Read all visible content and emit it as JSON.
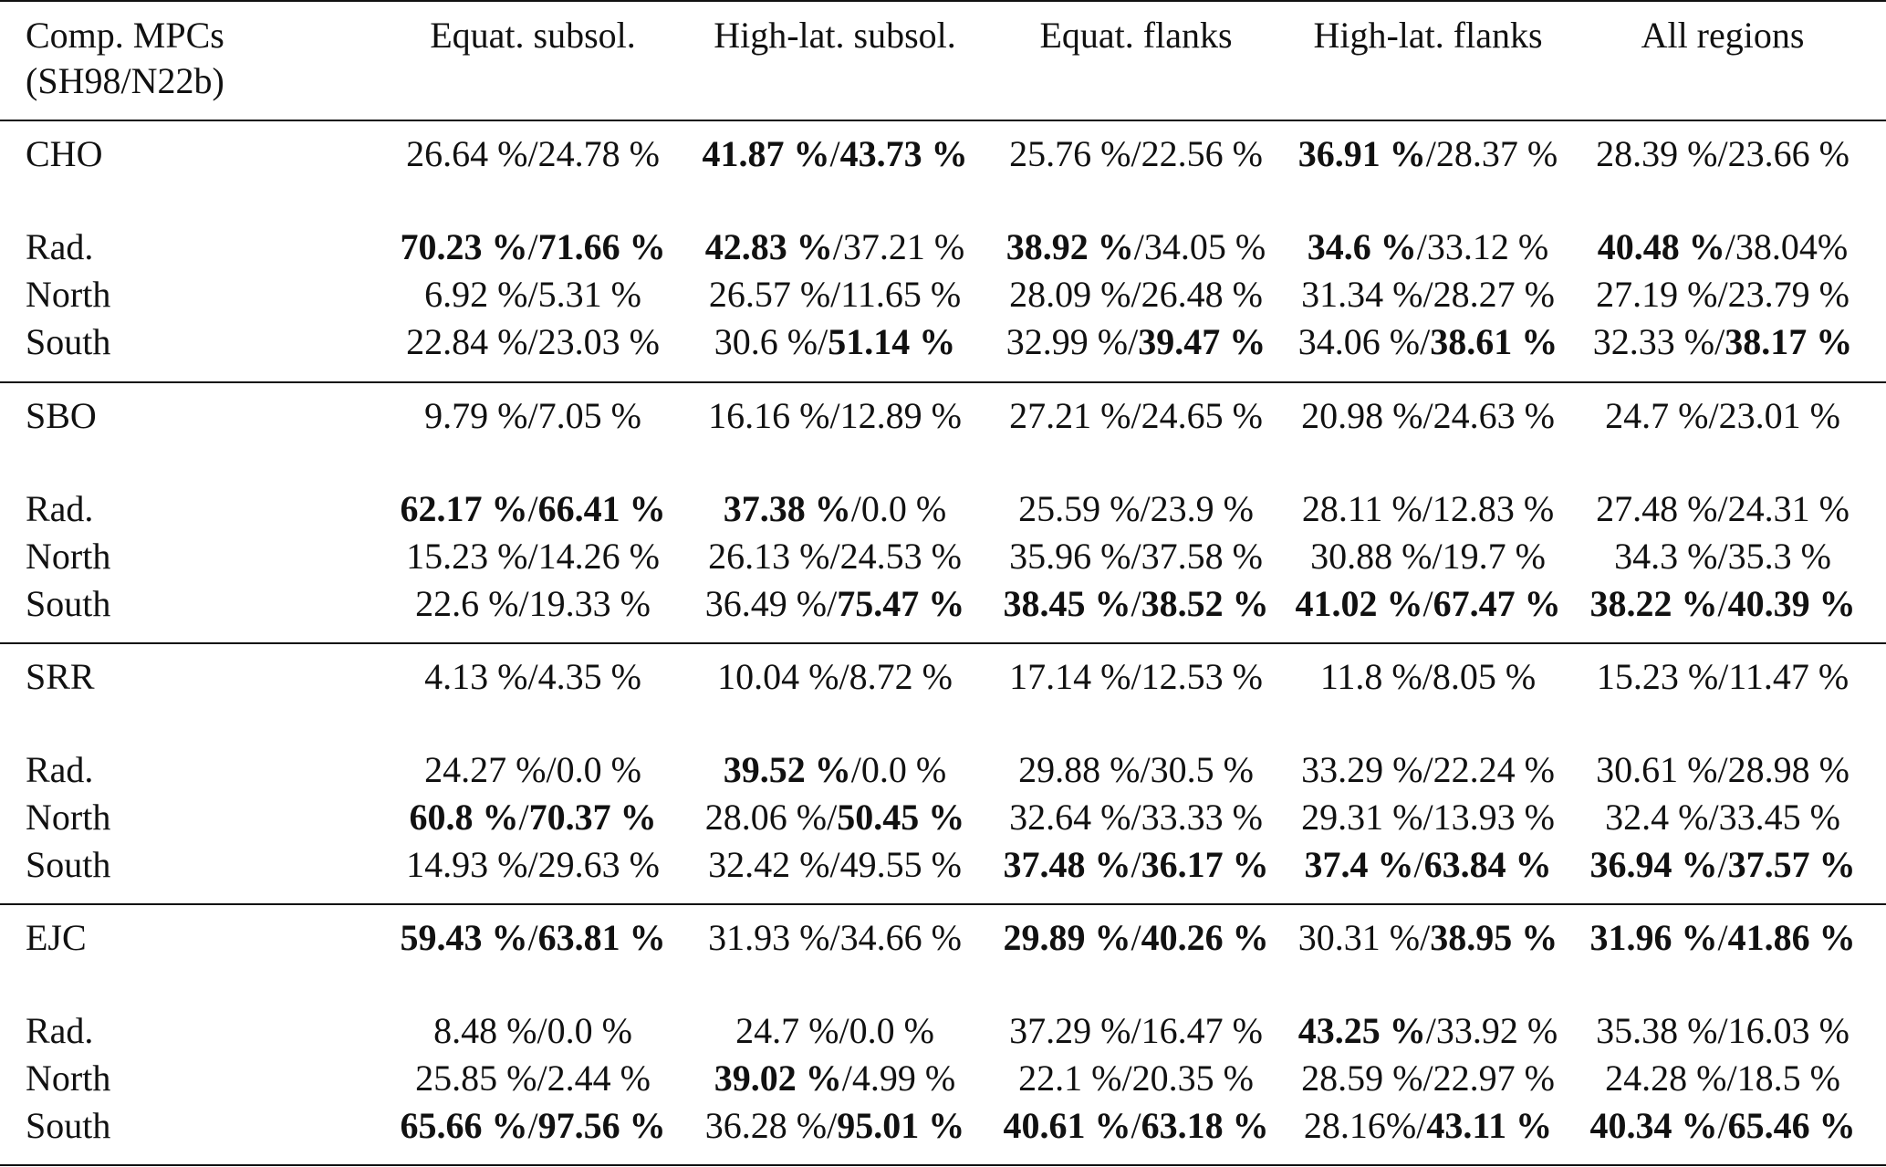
{
  "header": {
    "col0": [
      "Comp. MPCs",
      "(SH98/N22b)"
    ],
    "cols": [
      "Equat. subsol.",
      "High-lat. subsol.",
      "Equat. flanks",
      "High-lat. flanks",
      "All regions"
    ]
  },
  "groups": [
    {
      "name": "CHO",
      "rows": [
        {
          "label": "CHO",
          "cells": [
            [
              [
                "26.64 %",
                false
              ],
              [
                "24.78 %",
                false
              ]
            ],
            [
              [
                "41.87 %",
                true
              ],
              [
                "43.73 %",
                true
              ]
            ],
            [
              [
                "25.76 %",
                false
              ],
              [
                "22.56 %",
                false
              ]
            ],
            [
              [
                "36.91 %",
                true
              ],
              [
                "28.37 %",
                false
              ]
            ],
            [
              [
                "28.39 %",
                false
              ],
              [
                "23.66 %",
                false
              ]
            ]
          ]
        },
        {
          "label": "Rad.",
          "cells": [
            [
              [
                "70.23 %",
                true
              ],
              [
                "71.66 %",
                true
              ]
            ],
            [
              [
                "42.83 %",
                true
              ],
              [
                "37.21 %",
                false
              ]
            ],
            [
              [
                "38.92 %",
                true
              ],
              [
                "34.05 %",
                false
              ]
            ],
            [
              [
                "34.6 %",
                true
              ],
              [
                "33.12 %",
                false
              ]
            ],
            [
              [
                "40.48 %",
                true
              ],
              [
                "38.04%",
                false
              ]
            ]
          ]
        },
        {
          "label": "North",
          "cells": [
            [
              [
                "6.92 %",
                false
              ],
              [
                "5.31 %",
                false
              ]
            ],
            [
              [
                "26.57 %",
                false
              ],
              [
                "11.65 %",
                false
              ]
            ],
            [
              [
                "28.09 %",
                false
              ],
              [
                "26.48 %",
                false
              ]
            ],
            [
              [
                "31.34 %",
                false
              ],
              [
                "28.27 %",
                false
              ]
            ],
            [
              [
                "27.19 %",
                false
              ],
              [
                "23.79 %",
                false
              ]
            ]
          ]
        },
        {
          "label": "South",
          "cells": [
            [
              [
                "22.84 %",
                false
              ],
              [
                "23.03 %",
                false
              ]
            ],
            [
              [
                "30.6 %",
                false
              ],
              [
                "51.14 %",
                true
              ]
            ],
            [
              [
                "32.99 %",
                false
              ],
              [
                "39.47 %",
                true
              ]
            ],
            [
              [
                "34.06 %",
                false
              ],
              [
                "38.61 %",
                true
              ]
            ],
            [
              [
                "32.33 %",
                false
              ],
              [
                "38.17 %",
                true
              ]
            ]
          ]
        }
      ]
    },
    {
      "name": "SBO",
      "rows": [
        {
          "label": "SBO",
          "cells": [
            [
              [
                "9.79 %",
                false
              ],
              [
                "7.05 %",
                false
              ]
            ],
            [
              [
                "16.16 %",
                false
              ],
              [
                "12.89 %",
                false
              ]
            ],
            [
              [
                "27.21 %",
                false
              ],
              [
                "24.65 %",
                false
              ]
            ],
            [
              [
                "20.98 %",
                false
              ],
              [
                "24.63 %",
                false
              ]
            ],
            [
              [
                "24.7 %",
                false
              ],
              [
                "23.01 %",
                false
              ]
            ]
          ]
        },
        {
          "label": "Rad.",
          "cells": [
            [
              [
                "62.17 %",
                true
              ],
              [
                "66.41 %",
                true
              ]
            ],
            [
              [
                "37.38 %",
                true
              ],
              [
                "0.0 %",
                false
              ]
            ],
            [
              [
                "25.59 %",
                false
              ],
              [
                "23.9 %",
                false
              ]
            ],
            [
              [
                "28.11 %",
                false
              ],
              [
                "12.83 %",
                false
              ]
            ],
            [
              [
                "27.48 %",
                false
              ],
              [
                "24.31 %",
                false
              ]
            ]
          ]
        },
        {
          "label": "North",
          "cells": [
            [
              [
                "15.23 %",
                false
              ],
              [
                "14.26 %",
                false
              ]
            ],
            [
              [
                "26.13 %",
                false
              ],
              [
                "24.53 %",
                false
              ]
            ],
            [
              [
                "35.96 %",
                false
              ],
              [
                "37.58 %",
                false
              ]
            ],
            [
              [
                "30.88 %",
                false
              ],
              [
                "19.7 %",
                false
              ]
            ],
            [
              [
                "34.3 %",
                false
              ],
              [
                "35.3 %",
                false
              ]
            ]
          ]
        },
        {
          "label": "South",
          "cells": [
            [
              [
                "22.6 %",
                false
              ],
              [
                "19.33 %",
                false
              ]
            ],
            [
              [
                "36.49 %",
                false
              ],
              [
                "75.47 %",
                true
              ]
            ],
            [
              [
                "38.45 %",
                true
              ],
              [
                "38.52 %",
                true
              ]
            ],
            [
              [
                "41.02 %",
                true
              ],
              [
                "67.47 %",
                true
              ]
            ],
            [
              [
                "38.22 %",
                true
              ],
              [
                "40.39 %",
                true
              ]
            ]
          ]
        }
      ]
    },
    {
      "name": "SRR",
      "rows": [
        {
          "label": "SRR",
          "cells": [
            [
              [
                "4.13 %",
                false
              ],
              [
                "4.35 %",
                false
              ]
            ],
            [
              [
                "10.04 %",
                false
              ],
              [
                "8.72 %",
                false
              ]
            ],
            [
              [
                "17.14 %",
                false
              ],
              [
                "12.53 %",
                false
              ]
            ],
            [
              [
                "11.8 %",
                false
              ],
              [
                "8.05 %",
                false
              ]
            ],
            [
              [
                "15.23 %",
                false
              ],
              [
                "11.47 %",
                false
              ]
            ]
          ]
        },
        {
          "label": "Rad.",
          "cells": [
            [
              [
                "24.27 %",
                false
              ],
              [
                "0.0 %",
                false
              ]
            ],
            [
              [
                "39.52 %",
                true
              ],
              [
                "0.0 %",
                false
              ]
            ],
            [
              [
                "29.88 %",
                false
              ],
              [
                "30.5 %",
                false
              ]
            ],
            [
              [
                "33.29 %",
                false
              ],
              [
                "22.24 %",
                false
              ]
            ],
            [
              [
                "30.61 %",
                false
              ],
              [
                "28.98 %",
                false
              ]
            ]
          ]
        },
        {
          "label": "North",
          "cells": [
            [
              [
                "60.8 %",
                true
              ],
              [
                "70.37 %",
                true
              ]
            ],
            [
              [
                "28.06 %",
                false
              ],
              [
                "50.45 %",
                true
              ]
            ],
            [
              [
                "32.64 %",
                false
              ],
              [
                "33.33 %",
                false
              ]
            ],
            [
              [
                "29.31 %",
                false
              ],
              [
                "13.93 %",
                false
              ]
            ],
            [
              [
                "32.4 %",
                false
              ],
              [
                "33.45 %",
                false
              ]
            ]
          ]
        },
        {
          "label": "South",
          "cells": [
            [
              [
                "14.93 %",
                false
              ],
              [
                "29.63 %",
                false
              ]
            ],
            [
              [
                "32.42 %",
                false
              ],
              [
                "49.55 %",
                false
              ]
            ],
            [
              [
                "37.48 %",
                true
              ],
              [
                "36.17 %",
                true
              ]
            ],
            [
              [
                "37.4 %",
                true
              ],
              [
                "63.84 %",
                true
              ]
            ],
            [
              [
                "36.94 %",
                true
              ],
              [
                "37.57 %",
                true
              ]
            ]
          ]
        }
      ]
    },
    {
      "name": "EJC",
      "rows": [
        {
          "label": "EJC",
          "cells": [
            [
              [
                "59.43 %",
                true
              ],
              [
                "63.81 %",
                true
              ]
            ],
            [
              [
                "31.93 %",
                false
              ],
              [
                "34.66 %",
                false
              ]
            ],
            [
              [
                "29.89 %",
                true
              ],
              [
                "40.26 %",
                true
              ]
            ],
            [
              [
                "30.31 %",
                false
              ],
              [
                "38.95 %",
                true
              ]
            ],
            [
              [
                "31.96 %",
                true
              ],
              [
                "41.86 %",
                true
              ]
            ]
          ]
        },
        {
          "label": "Rad.",
          "cells": [
            [
              [
                "8.48 %",
                false
              ],
              [
                "0.0 %",
                false
              ]
            ],
            [
              [
                "24.7 %",
                false
              ],
              [
                "0.0 %",
                false
              ]
            ],
            [
              [
                "37.29 %",
                false
              ],
              [
                "16.47 %",
                false
              ]
            ],
            [
              [
                "43.25 %",
                true
              ],
              [
                "33.92 %",
                false
              ]
            ],
            [
              [
                "35.38 %",
                false
              ],
              [
                "16.03 %",
                false
              ]
            ]
          ]
        },
        {
          "label": "North",
          "cells": [
            [
              [
                "25.85 %",
                false
              ],
              [
                "2.44 %",
                false
              ]
            ],
            [
              [
                "39.02 %",
                true
              ],
              [
                "4.99 %",
                false
              ]
            ],
            [
              [
                "22.1 %",
                false
              ],
              [
                "20.35 %",
                false
              ]
            ],
            [
              [
                "28.59 %",
                false
              ],
              [
                "22.97 %",
                false
              ]
            ],
            [
              [
                "24.28 %",
                false
              ],
              [
                "18.5 %",
                false
              ]
            ]
          ]
        },
        {
          "label": "South",
          "cells": [
            [
              [
                "65.66 %",
                true
              ],
              [
                "97.56 %",
                true
              ]
            ],
            [
              [
                "36.28 %",
                false
              ],
              [
                "95.01 %",
                true
              ]
            ],
            [
              [
                "40.61 %",
                true
              ],
              [
                "63.18 %",
                true
              ]
            ],
            [
              [
                "28.16%",
                false
              ],
              [
                "43.11 %",
                true
              ]
            ],
            [
              [
                "40.34 %",
                true
              ],
              [
                "65.46 %",
                true
              ]
            ]
          ]
        }
      ]
    }
  ]
}
